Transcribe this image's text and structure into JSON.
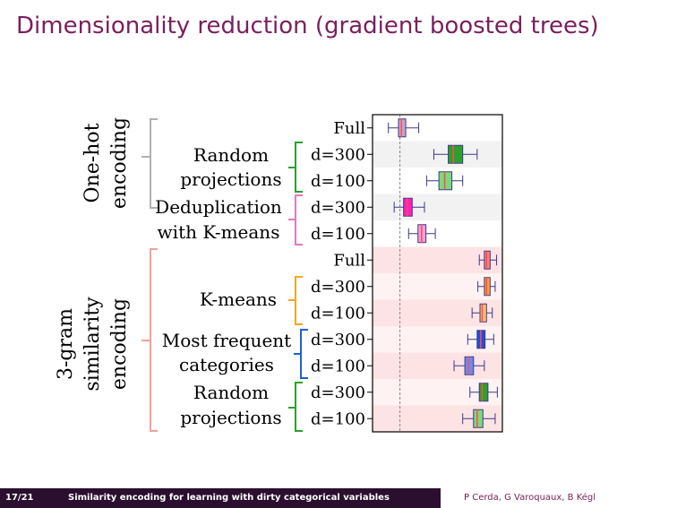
{
  "slide": {
    "title": "Dimensionality reduction (gradient boosted trees)"
  },
  "groups": {
    "onehot_line1": "One-hot",
    "onehot_line2": "encoding",
    "gram_line1": "3-gram",
    "gram_line2": "similarity",
    "gram_line3": "encoding"
  },
  "methods": {
    "rp1_line1": "Random",
    "rp1_line2": "projections",
    "dedup_line1": "Deduplication",
    "dedup_line2": "with K-means",
    "kmeans": "K-means",
    "mf_line1": "Most frequent",
    "mf_line2": "categories",
    "rp2_line1": "Random",
    "rp2_line2": "projections"
  },
  "colors": {
    "gray_bracket": "#b0b0b0",
    "green": "#2ca02c",
    "pink": "#e377c2",
    "salmon": "#f4a09a",
    "orange": "#f5a623",
    "blue": "#1f5fd6",
    "title": "#7a1f5c",
    "footer_dark": "#2a0f2e"
  },
  "chart_data": {
    "type": "box",
    "rows": [
      {
        "label": "Full",
        "color": "#c9a6c9",
        "median_color": "#ff4d4d",
        "whislo": 0.22,
        "q1": 0.36,
        "med": 0.4,
        "q3": 0.46,
        "whishi": 0.64,
        "band": "white"
      },
      {
        "label": "d=300",
        "color": "#2ca02c",
        "median_color": "#ff4d4d",
        "whislo": 0.85,
        "q1": 1.05,
        "med": 1.12,
        "q3": 1.25,
        "whishi": 1.45,
        "band": "gray"
      },
      {
        "label": "d=100",
        "color": "#7cd97c",
        "median_color": "#ff4d4d",
        "whislo": 0.75,
        "q1": 0.92,
        "med": 1.0,
        "q3": 1.1,
        "whishi": 1.25,
        "band": "white"
      },
      {
        "label": "d=300",
        "color": "#ff1fbf",
        "median_color": "#ff4d4d",
        "whislo": 0.3,
        "q1": 0.43,
        "med": 0.48,
        "q3": 0.55,
        "whishi": 0.72,
        "band": "gray"
      },
      {
        "label": "d=100",
        "color": "#ff9ed8",
        "median_color": "#ff4d4d",
        "whislo": 0.5,
        "q1": 0.63,
        "med": 0.68,
        "q3": 0.74,
        "whishi": 0.87,
        "band": "white"
      },
      {
        "label": "Full",
        "color": "#ff7f7f",
        "median_color": "#ff4d4d",
        "whislo": 1.48,
        "q1": 1.55,
        "med": 1.58,
        "q3": 1.63,
        "whishi": 1.72,
        "band": "pink"
      },
      {
        "label": "d=300",
        "color": "#ff9f3a",
        "median_color": "#ff4d4d",
        "whislo": 1.46,
        "q1": 1.55,
        "med": 1.58,
        "q3": 1.63,
        "whishi": 1.7,
        "band": "light"
      },
      {
        "label": "d=100",
        "color": "#ffc070",
        "median_color": "#ff4d4d",
        "whislo": 1.38,
        "q1": 1.49,
        "med": 1.52,
        "q3": 1.58,
        "whishi": 1.66,
        "band": "pink"
      },
      {
        "label": "d=300",
        "color": "#1f4fd6",
        "median_color": "#ff4d4d",
        "whislo": 1.32,
        "q1": 1.45,
        "med": 1.5,
        "q3": 1.56,
        "whishi": 1.68,
        "band": "light"
      },
      {
        "label": "d=100",
        "color": "#6a8cf0",
        "median_color": "#ff4d4d",
        "whislo": 1.13,
        "q1": 1.28,
        "med": 1.33,
        "q3": 1.4,
        "whishi": 1.55,
        "band": "pink"
      },
      {
        "label": "d=300",
        "color": "#2ca02c",
        "median_color": "#ff4d4d",
        "whislo": 1.35,
        "q1": 1.48,
        "med": 1.52,
        "q3": 1.6,
        "whishi": 1.73,
        "band": "light"
      },
      {
        "label": "d=100",
        "color": "#7cd97c",
        "median_color": "#ff4d4d",
        "whislo": 1.25,
        "q1": 1.4,
        "med": 1.45,
        "q3": 1.53,
        "whishi": 1.7,
        "band": "pink"
      }
    ],
    "reference_line": 0.38,
    "xlim": [
      0.0,
      1.8
    ],
    "bands": {
      "white": "#ffffff",
      "gray": "#f2f2f2",
      "pink": "#fde3e3",
      "light": "#fef2f2"
    }
  },
  "footer": {
    "page": "17/21",
    "talk_title": "Similarity encoding for learning with dirty categorical variables",
    "authors": "P Cerda, G Varoquaux, B Kégl"
  }
}
